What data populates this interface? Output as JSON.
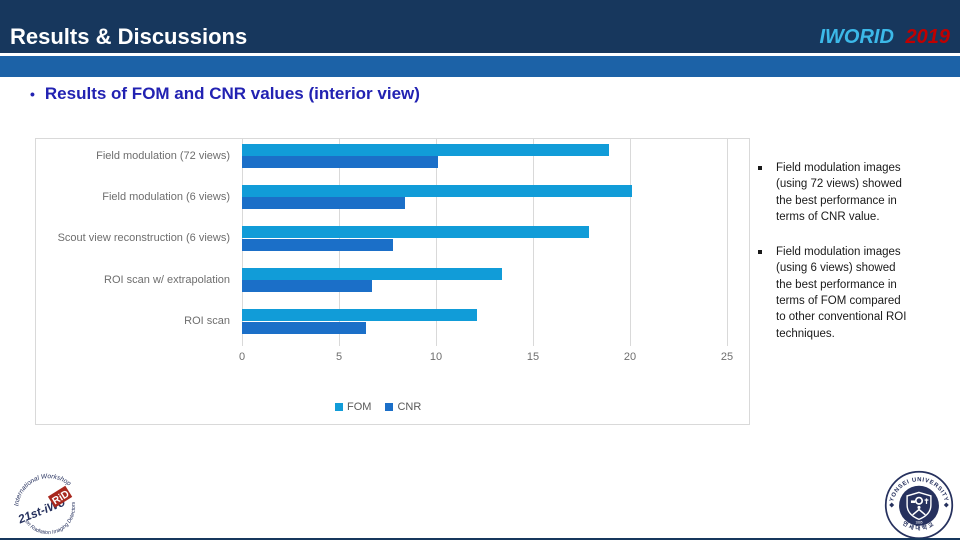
{
  "header": {
    "title": "Results & Discussions",
    "conference": "IWORID",
    "year": "2019"
  },
  "heading": {
    "bullet": "•",
    "text": "Results of FOM and CNR values (interior view)"
  },
  "chart_data": {
    "type": "bar",
    "orientation": "horizontal",
    "categories": [
      "Field modulation (72 views)",
      "Field modulation (6 views)",
      "Scout view reconstruction (6 views)",
      "ROI scan w/ extrapolation",
      "ROI scan"
    ],
    "series": [
      {
        "name": "FOM",
        "color": "#119CD8",
        "values": [
          18.9,
          20.1,
          17.9,
          13.4,
          12.1
        ]
      },
      {
        "name": "CNR",
        "color": "#1B6FC8",
        "values": [
          10.1,
          8.4,
          7.8,
          6.7,
          6.4
        ]
      }
    ],
    "xlim": [
      0,
      25
    ],
    "xticks": [
      0,
      5,
      10,
      15,
      20,
      25
    ],
    "grid": true,
    "legend_position": "bottom",
    "gridline_color": "#d9d9d9",
    "axis_text_color": "#6e6e6e"
  },
  "notes": [
    {
      "text": "Field modulation images (using 72 views) showed the best performance in terms of CNR value."
    },
    {
      "text": "Field modulation images (using 6 views) showed the best performance in terms of FOM compared to other conventional ROI techniques."
    }
  ],
  "logos": {
    "left": {
      "arc_top": "International Workshop",
      "name": "21st-iWo",
      "name_highlight": "RiD",
      "arc_bottom": "on Radiation Imaging Detectors"
    },
    "right": {
      "arc_top": "YONSEI UNIVERSITY",
      "arc_bottom": "연세대학교",
      "banner": "1885"
    }
  },
  "colors": {
    "header_bg": "#17375D",
    "accent_band": "#1C62A7",
    "conference_name": "#3CB9E9",
    "conference_year": "#C00000",
    "heading_text": "#2222B2",
    "logo_navy": "#26315E",
    "logo_red": "#A8281E"
  }
}
